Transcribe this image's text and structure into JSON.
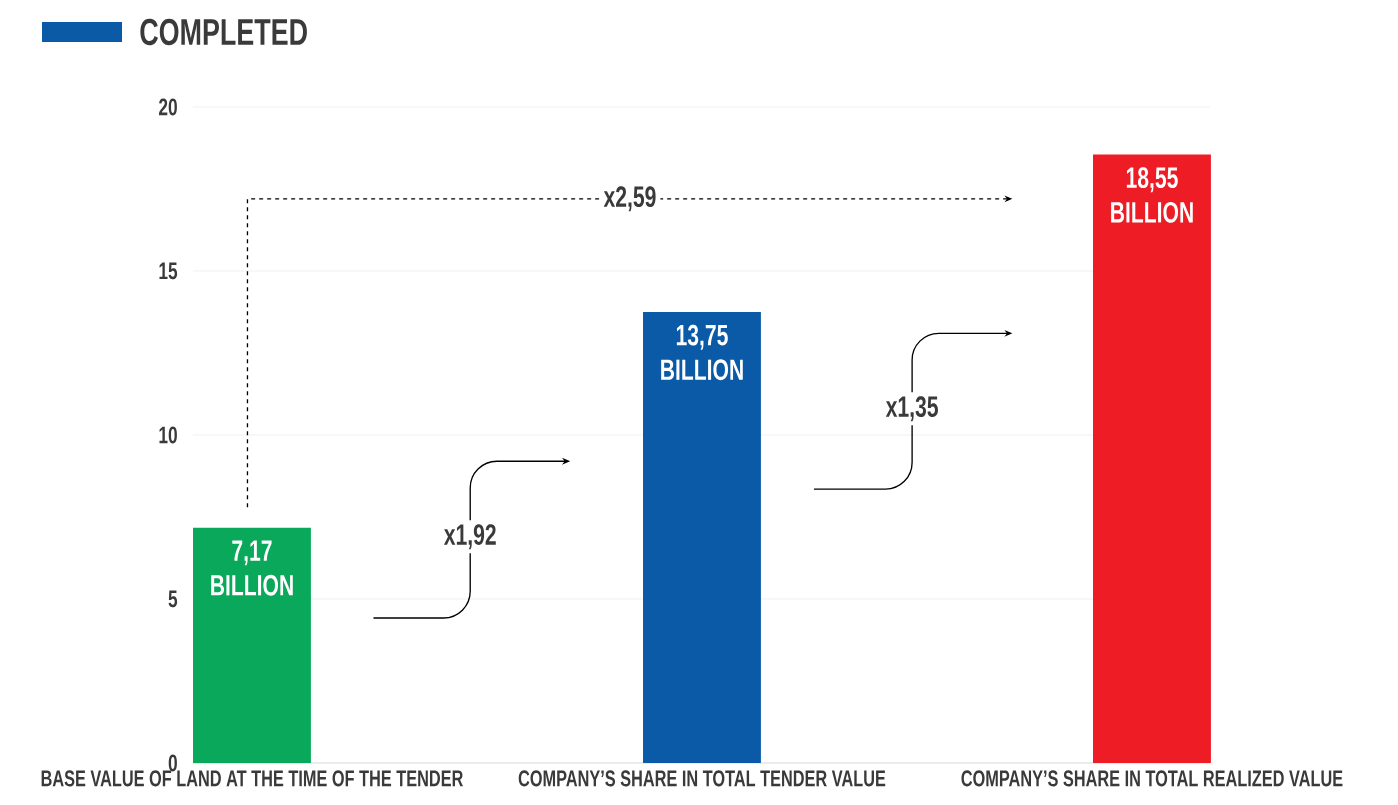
{
  "chart_data": {
    "type": "bar",
    "categories": [
      "BASE VALUE OF LAND AT THE TIME OF THE TENDER",
      "COMPANY’S SHARE IN TOTAL TENDER VALUE",
      "COMPANY’S SHARE IN TOTAL REALIZED VALUE"
    ],
    "series": [
      {
        "name": "COMPLETED",
        "color": "#0a5aa8",
        "colors": [
          "#0aa85a",
          "#0a5aa8",
          "#ee1c25"
        ],
        "values": [
          7.17,
          13.75,
          18.55
        ],
        "value_labels": [
          "7,17 BILLION",
          "13,75 BILLION",
          "18,55 BILLION"
        ]
      }
    ],
    "ylim": [
      0,
      20
    ],
    "yticks": [
      0,
      5,
      10,
      15,
      20
    ],
    "grid": "y",
    "legend": "top left",
    "annotations": [
      "x2,59",
      "x1,92",
      "x1,35"
    ]
  }
}
